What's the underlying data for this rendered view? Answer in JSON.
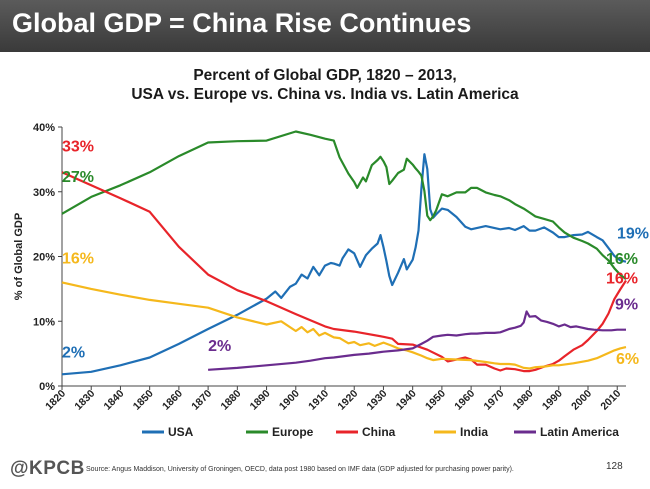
{
  "slide": {
    "title": "Global GDP = China Rise Continues",
    "brand": "@KPCB",
    "source": "Source: Angus Maddison, University of Groningen, OECD, data post 1980 based on IMF data (GDP adjusted for purchasing power parity).",
    "page_number": "128"
  },
  "chart_data": {
    "type": "line",
    "title_lines": [
      "Percent of Global GDP, 1820 – 2013,",
      "USA vs. Europe vs. China vs. India vs. Latin America"
    ],
    "xlabel": "",
    "ylabel": "% of Global GDP",
    "xlim": [
      1820,
      2013
    ],
    "ylim": [
      0,
      40
    ],
    "x_ticks": [
      1820,
      1830,
      1840,
      1850,
      1860,
      1870,
      1880,
      1890,
      1900,
      1910,
      1920,
      1930,
      1940,
      1950,
      1960,
      1970,
      1980,
      1990,
      2000,
      2010
    ],
    "y_ticks": [
      0,
      10,
      20,
      30,
      40
    ],
    "y_tick_labels": [
      "0%",
      "10%",
      "20%",
      "30%",
      "40%"
    ],
    "grid": false,
    "legend_position": "bottom",
    "series": [
      {
        "name": "USA",
        "color": "#1f6fb5",
        "points": [
          [
            1820,
            1.8
          ],
          [
            1830,
            2.2
          ],
          [
            1840,
            3.2
          ],
          [
            1850,
            4.4
          ],
          [
            1860,
            6.5
          ],
          [
            1870,
            8.8
          ],
          [
            1880,
            11
          ],
          [
            1890,
            13.5
          ],
          [
            1893,
            14.6
          ],
          [
            1895,
            13.6
          ],
          [
            1898,
            15.3
          ],
          [
            1900,
            15.8
          ],
          [
            1902,
            17.2
          ],
          [
            1904,
            16.6
          ],
          [
            1906,
            18.4
          ],
          [
            1908,
            17.1
          ],
          [
            1910,
            18.6
          ],
          [
            1912,
            19
          ],
          [
            1913,
            18.9
          ],
          [
            1915,
            18.6
          ],
          [
            1916,
            19.7
          ],
          [
            1918,
            21.1
          ],
          [
            1920,
            20.5
          ],
          [
            1922,
            18.4
          ],
          [
            1924,
            20.2
          ],
          [
            1926,
            21.2
          ],
          [
            1928,
            22
          ],
          [
            1929,
            23.3
          ],
          [
            1930,
            21.4
          ],
          [
            1931,
            19.3
          ],
          [
            1932,
            17
          ],
          [
            1933,
            15.6
          ],
          [
            1935,
            17.5
          ],
          [
            1937,
            19.6
          ],
          [
            1938,
            18
          ],
          [
            1940,
            19.5
          ],
          [
            1941,
            21.4
          ],
          [
            1942,
            24
          ],
          [
            1943,
            30.5
          ],
          [
            1944,
            35.8
          ],
          [
            1945,
            33.5
          ],
          [
            1946,
            27.3
          ],
          [
            1947,
            26
          ],
          [
            1948,
            26.5
          ],
          [
            1950,
            27.4
          ],
          [
            1952,
            27.2
          ],
          [
            1955,
            26.1
          ],
          [
            1958,
            24.6
          ],
          [
            1960,
            24.2
          ],
          [
            1965,
            24.7
          ],
          [
            1970,
            24.2
          ],
          [
            1973,
            24.4
          ],
          [
            1975,
            24.1
          ],
          [
            1978,
            24.7
          ],
          [
            1980,
            24
          ],
          [
            1982,
            24
          ],
          [
            1985,
            24.5
          ],
          [
            1988,
            23.7
          ],
          [
            1990,
            23
          ],
          [
            1992,
            23
          ],
          [
            1995,
            23.3
          ],
          [
            1998,
            23.4
          ],
          [
            2000,
            23.8
          ],
          [
            2003,
            23
          ],
          [
            2005,
            22.5
          ],
          [
            2007,
            21.3
          ],
          [
            2009,
            20.1
          ],
          [
            2011,
            19.4
          ],
          [
            2013,
            19.2
          ]
        ]
      },
      {
        "name": "Europe",
        "color": "#2a8a2a",
        "points": [
          [
            1820,
            26.6
          ],
          [
            1830,
            29.2
          ],
          [
            1840,
            31
          ],
          [
            1850,
            33
          ],
          [
            1860,
            35.5
          ],
          [
            1870,
            37.6
          ],
          [
            1880,
            37.8
          ],
          [
            1890,
            37.9
          ],
          [
            1900,
            39.3
          ],
          [
            1905,
            38.8
          ],
          [
            1910,
            38.2
          ],
          [
            1913,
            37.9
          ],
          [
            1915,
            35.3
          ],
          [
            1918,
            32.8
          ],
          [
            1920,
            31.5
          ],
          [
            1921,
            30.6
          ],
          [
            1923,
            32.2
          ],
          [
            1924,
            31.6
          ],
          [
            1926,
            34.1
          ],
          [
            1928,
            34.9
          ],
          [
            1929,
            35.4
          ],
          [
            1930,
            34.7
          ],
          [
            1931,
            33.8
          ],
          [
            1932,
            31.2
          ],
          [
            1933,
            31.7
          ],
          [
            1935,
            32.9
          ],
          [
            1937,
            33.4
          ],
          [
            1938,
            35.1
          ],
          [
            1940,
            34.2
          ],
          [
            1941,
            33.6
          ],
          [
            1942,
            33.1
          ],
          [
            1943,
            32.5
          ],
          [
            1944,
            30.1
          ],
          [
            1945,
            26.3
          ],
          [
            1946,
            25.6
          ],
          [
            1947,
            26.2
          ],
          [
            1948,
            27.1
          ],
          [
            1950,
            29.6
          ],
          [
            1952,
            29.3
          ],
          [
            1955,
            29.9
          ],
          [
            1958,
            29.9
          ],
          [
            1960,
            30.6
          ],
          [
            1962,
            30.6
          ],
          [
            1965,
            29.9
          ],
          [
            1968,
            29.5
          ],
          [
            1970,
            29.3
          ],
          [
            1973,
            28.7
          ],
          [
            1975,
            28.1
          ],
          [
            1978,
            27.4
          ],
          [
            1980,
            26.8
          ],
          [
            1982,
            26.2
          ],
          [
            1985,
            25.8
          ],
          [
            1988,
            25.4
          ],
          [
            1990,
            24.5
          ],
          [
            1992,
            23.7
          ],
          [
            1995,
            22.9
          ],
          [
            1998,
            22.4
          ],
          [
            2000,
            22
          ],
          [
            2003,
            21.2
          ],
          [
            2005,
            20.2
          ],
          [
            2007,
            19.4
          ],
          [
            2009,
            18.2
          ],
          [
            2011,
            17.2
          ],
          [
            2013,
            16.5
          ]
        ]
      },
      {
        "name": "China",
        "color": "#e8242a",
        "points": [
          [
            1820,
            33
          ],
          [
            1830,
            31
          ],
          [
            1840,
            29
          ],
          [
            1850,
            26.9
          ],
          [
            1860,
            21.5
          ],
          [
            1870,
            17.2
          ],
          [
            1880,
            14.8
          ],
          [
            1890,
            13.1
          ],
          [
            1900,
            11.1
          ],
          [
            1910,
            9.2
          ],
          [
            1913,
            8.8
          ],
          [
            1920,
            8.4
          ],
          [
            1930,
            7.6
          ],
          [
            1933,
            7.3
          ],
          [
            1935,
            6.5
          ],
          [
            1940,
            6.4
          ],
          [
            1945,
            5.6
          ],
          [
            1950,
            4.5
          ],
          [
            1952,
            3.8
          ],
          [
            1955,
            4.1
          ],
          [
            1958,
            4.4
          ],
          [
            1960,
            4.1
          ],
          [
            1962,
            3.3
          ],
          [
            1965,
            3.3
          ],
          [
            1968,
            2.7
          ],
          [
            1970,
            2.4
          ],
          [
            1972,
            2.7
          ],
          [
            1975,
            2.6
          ],
          [
            1978,
            2.3
          ],
          [
            1980,
            2.3
          ],
          [
            1982,
            2.5
          ],
          [
            1985,
            3
          ],
          [
            1988,
            3.4
          ],
          [
            1990,
            3.9
          ],
          [
            1992,
            4.6
          ],
          [
            1995,
            5.6
          ],
          [
            1998,
            6.3
          ],
          [
            2000,
            7.1
          ],
          [
            2003,
            8.5
          ],
          [
            2005,
            9.6
          ],
          [
            2007,
            11.2
          ],
          [
            2009,
            13.4
          ],
          [
            2011,
            14.9
          ],
          [
            2013,
            16.3
          ]
        ]
      },
      {
        "name": "India",
        "color": "#f5b81c",
        "points": [
          [
            1820,
            16
          ],
          [
            1830,
            15
          ],
          [
            1840,
            14.1
          ],
          [
            1850,
            13.3
          ],
          [
            1860,
            12.7
          ],
          [
            1870,
            12.1
          ],
          [
            1880,
            10.6
          ],
          [
            1890,
            9.5
          ],
          [
            1895,
            10
          ],
          [
            1900,
            8.5
          ],
          [
            1902,
            9.1
          ],
          [
            1904,
            8.3
          ],
          [
            1906,
            8.8
          ],
          [
            1908,
            7.8
          ],
          [
            1910,
            8.2
          ],
          [
            1913,
            7.5
          ],
          [
            1915,
            7.4
          ],
          [
            1918,
            6.6
          ],
          [
            1920,
            6.8
          ],
          [
            1922,
            6.3
          ],
          [
            1925,
            6.6
          ],
          [
            1927,
            6.2
          ],
          [
            1930,
            6.7
          ],
          [
            1933,
            6.2
          ],
          [
            1935,
            5.8
          ],
          [
            1938,
            5.5
          ],
          [
            1940,
            5.2
          ],
          [
            1943,
            4.7
          ],
          [
            1945,
            4.3
          ],
          [
            1947,
            4
          ],
          [
            1950,
            4.2
          ],
          [
            1955,
            4.1
          ],
          [
            1960,
            4
          ],
          [
            1965,
            3.7
          ],
          [
            1968,
            3.5
          ],
          [
            1970,
            3.4
          ],
          [
            1973,
            3.4
          ],
          [
            1975,
            3.3
          ],
          [
            1978,
            2.8
          ],
          [
            1980,
            2.7
          ],
          [
            1982,
            2.9
          ],
          [
            1985,
            3
          ],
          [
            1988,
            3.2
          ],
          [
            1990,
            3.2
          ],
          [
            1995,
            3.5
          ],
          [
            2000,
            3.9
          ],
          [
            2003,
            4.3
          ],
          [
            2005,
            4.7
          ],
          [
            2007,
            5.1
          ],
          [
            2009,
            5.5
          ],
          [
            2011,
            5.8
          ],
          [
            2013,
            6
          ]
        ]
      },
      {
        "name": "Latin America",
        "color": "#6a2c8e",
        "points": [
          [
            1870,
            2.5
          ],
          [
            1880,
            2.8
          ],
          [
            1890,
            3.2
          ],
          [
            1900,
            3.6
          ],
          [
            1905,
            3.9
          ],
          [
            1910,
            4.3
          ],
          [
            1913,
            4.4
          ],
          [
            1920,
            4.8
          ],
          [
            1925,
            5
          ],
          [
            1930,
            5.3
          ],
          [
            1935,
            5.5
          ],
          [
            1940,
            5.8
          ],
          [
            1943,
            6.5
          ],
          [
            1945,
            7
          ],
          [
            1947,
            7.6
          ],
          [
            1950,
            7.8
          ],
          [
            1952,
            7.9
          ],
          [
            1955,
            7.8
          ],
          [
            1958,
            8
          ],
          [
            1960,
            8.1
          ],
          [
            1962,
            8.1
          ],
          [
            1965,
            8.2
          ],
          [
            1968,
            8.2
          ],
          [
            1970,
            8.3
          ],
          [
            1973,
            8.8
          ],
          [
            1975,
            9
          ],
          [
            1977,
            9.3
          ],
          [
            1978,
            9.8
          ],
          [
            1979,
            11.5
          ],
          [
            1980,
            10.7
          ],
          [
            1982,
            10.8
          ],
          [
            1984,
            10.1
          ],
          [
            1986,
            9.9
          ],
          [
            1988,
            9.6
          ],
          [
            1990,
            9.2
          ],
          [
            1992,
            9.5
          ],
          [
            1994,
            9.1
          ],
          [
            1996,
            9.2
          ],
          [
            1998,
            9
          ],
          [
            2000,
            8.8
          ],
          [
            2002,
            8.7
          ],
          [
            2005,
            8.6
          ],
          [
            2008,
            8.6
          ],
          [
            2010,
            8.7
          ],
          [
            2013,
            8.7
          ]
        ]
      }
    ],
    "annotations": [
      {
        "text": "33%",
        "x": 1820,
        "y": 33,
        "color": "#e8242a"
      },
      {
        "text": "27%",
        "x": 1820,
        "y": 26.6,
        "color": "#2a8a2a"
      },
      {
        "text": "16%",
        "x": 1820,
        "y": 16,
        "color": "#f5b81c"
      },
      {
        "text": "2%",
        "x": 1820,
        "y": 1.8,
        "color": "#1f6fb5"
      },
      {
        "text": "2%",
        "x": 1870,
        "y": 2.5,
        "color": "#6a2c8e"
      },
      {
        "text": "19%",
        "x": 2013,
        "y": 19.2,
        "color": "#1f6fb5"
      },
      {
        "text": "16%",
        "x": 2013,
        "y": 16.5,
        "color": "#2a8a2a"
      },
      {
        "text": "16%",
        "x": 2013,
        "y": 16.3,
        "color": "#e8242a"
      },
      {
        "text": "9%",
        "x": 2013,
        "y": 8.7,
        "color": "#6a2c8e"
      },
      {
        "text": "6%",
        "x": 2013,
        "y": 6,
        "color": "#f5b81c"
      }
    ]
  }
}
